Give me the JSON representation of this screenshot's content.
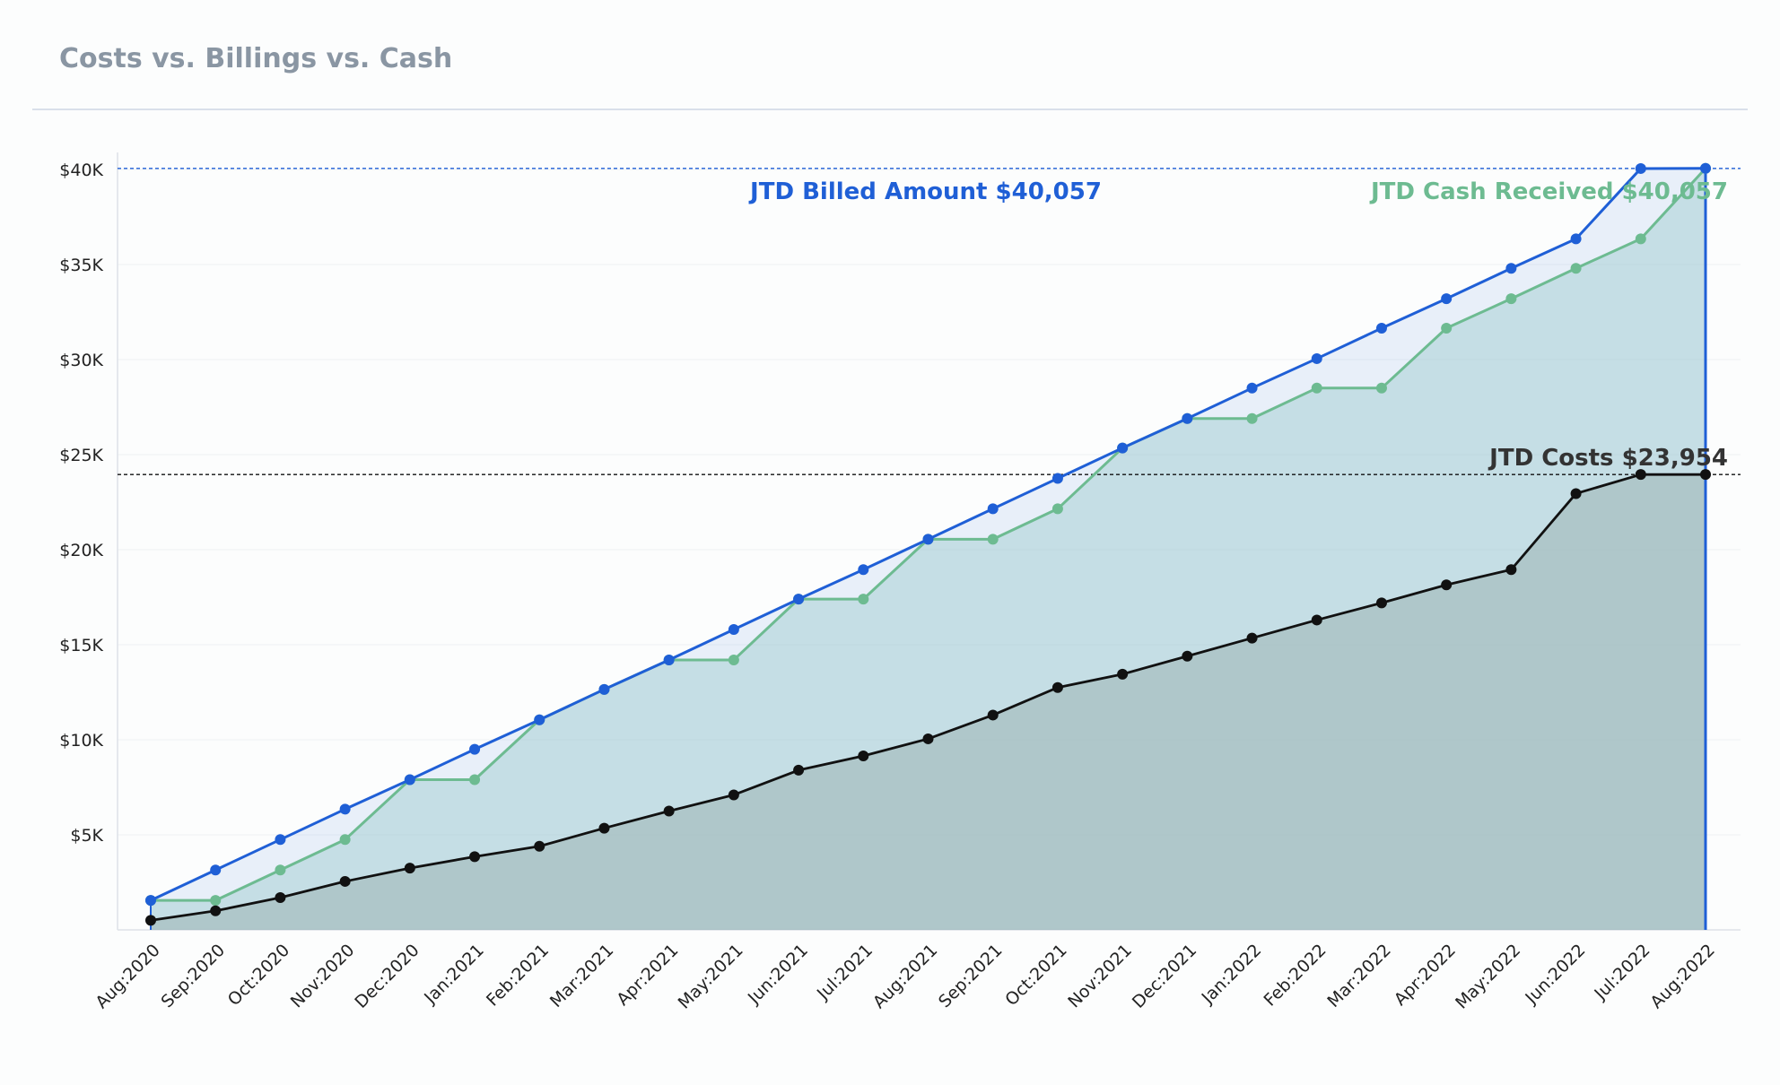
{
  "card": {
    "title": "Costs vs. Billings vs. Cash"
  },
  "colors": {
    "billed": "#1f5fd6",
    "cash": "#6dbb91",
    "costs": "#111111"
  },
  "chart_data": {
    "type": "area",
    "title": "Costs vs. Billings vs. Cash",
    "xlabel": "",
    "ylabel": "",
    "categories": [
      "Aug:2020",
      "Sep:2020",
      "Oct:2020",
      "Nov:2020",
      "Dec:2020",
      "Jan:2021",
      "Feb:2021",
      "Mar:2021",
      "Apr:2021",
      "May:2021",
      "Jun:2021",
      "Jul:2021",
      "Aug:2021",
      "Sep:2021",
      "Oct:2021",
      "Nov:2021",
      "Dec:2021",
      "Jan:2022",
      "Feb:2022",
      "Mar:2022",
      "Apr:2022",
      "May:2022",
      "Jun:2022",
      "Jul:2022",
      "Aug:2022"
    ],
    "ylim": [
      0,
      41000
    ],
    "yticks": [
      {
        "value": 5000,
        "label": "$5K"
      },
      {
        "value": 10000,
        "label": "$10K"
      },
      {
        "value": 15000,
        "label": "$15K"
      },
      {
        "value": 20000,
        "label": "$20K"
      },
      {
        "value": 25000,
        "label": "$25K"
      },
      {
        "value": 30000,
        "label": "$30K"
      },
      {
        "value": 35000,
        "label": "$35K"
      },
      {
        "value": 40000,
        "label": "$40K"
      }
    ],
    "grid": true,
    "series": [
      {
        "key": "billed",
        "values": [
          1550,
          3150,
          4750,
          6350,
          7900,
          9500,
          11050,
          12650,
          14200,
          15800,
          17400,
          18950,
          20550,
          22150,
          23750,
          25350,
          26900,
          28500,
          30050,
          31650,
          33200,
          34800,
          36350,
          40050,
          40057
        ]
      },
      {
        "key": "cash",
        "values": [
          1550,
          1550,
          3150,
          4750,
          7900,
          7900,
          11050,
          12650,
          14200,
          14200,
          17400,
          17400,
          20550,
          20550,
          22150,
          25350,
          26900,
          26900,
          28500,
          28500,
          31650,
          33200,
          34800,
          36350,
          40057
        ]
      },
      {
        "key": "costs",
        "values": [
          500,
          1000,
          1700,
          2550,
          3250,
          3850,
          4400,
          5350,
          6250,
          7100,
          8400,
          9150,
          10050,
          11300,
          12750,
          13450,
          14400,
          15350,
          16300,
          17200,
          18150,
          18950,
          22950,
          23954,
          23954
        ]
      }
    ],
    "reference_lines": [
      {
        "key": "billed",
        "value": 40057,
        "label": "JTD Billed Amount $40,057"
      },
      {
        "key": "costs",
        "value": 23954,
        "label": "JTD Costs $23,954"
      }
    ],
    "annotations": [
      {
        "key": "billed",
        "text": "JTD Billed Amount $40,057"
      },
      {
        "key": "cash",
        "text": "JTD Cash Received $40,057"
      },
      {
        "key": "costs",
        "text": "JTD Costs $23,954"
      }
    ],
    "current_marker": "Aug:2022"
  }
}
